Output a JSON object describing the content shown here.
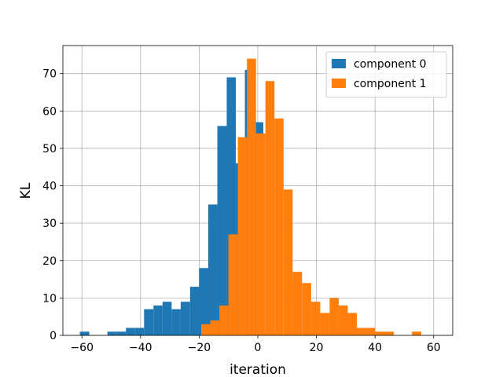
{
  "chart_data": {
    "type": "bar",
    "subtype": "histogram",
    "xlabel": "iteration",
    "ylabel": "KL",
    "xlim": [
      -66.5,
      66.5
    ],
    "ylim": [
      0,
      77.5
    ],
    "xticks": [
      -60,
      -40,
      -20,
      0,
      20,
      40,
      60
    ],
    "yticks": [
      0,
      10,
      20,
      30,
      40,
      50,
      60,
      70
    ],
    "grid": true,
    "legend_position": "top-right",
    "series": [
      {
        "name": "component 0",
        "color": "#1f77b4",
        "bin_edges": [
          -60.7,
          -57.5,
          -54.4,
          -51.3,
          -48.2,
          -45.0,
          -41.9,
          -38.8,
          -35.6,
          -32.5,
          -29.4,
          -26.3,
          -23.1,
          -20.0,
          -16.9,
          -13.8,
          -10.6,
          -7.5,
          -4.4,
          -1.3,
          1.9
        ],
        "counts": [
          1,
          0,
          0,
          1,
          1,
          2,
          2,
          7,
          8,
          9,
          7,
          9,
          13,
          18,
          35,
          56,
          69,
          46,
          71,
          57
        ]
      },
      {
        "name": "component 1",
        "color": "#ff7f0e",
        "bin_edges": [
          -19.3,
          -16.2,
          -13.1,
          -10.0,
          -6.8,
          -3.7,
          -0.6,
          2.6,
          5.7,
          8.8,
          11.9,
          15.1,
          18.2,
          21.3,
          24.5,
          27.6,
          30.7,
          33.8,
          37.0,
          40.1,
          43.2,
          46.4,
          49.5,
          52.6,
          55.8,
          58.9
        ],
        "counts": [
          3,
          4,
          8,
          27,
          53,
          74,
          54,
          68,
          58,
          39,
          17,
          14,
          9,
          6,
          10,
          8,
          6,
          2,
          2,
          1,
          1,
          0,
          0,
          1,
          0
        ]
      }
    ]
  }
}
